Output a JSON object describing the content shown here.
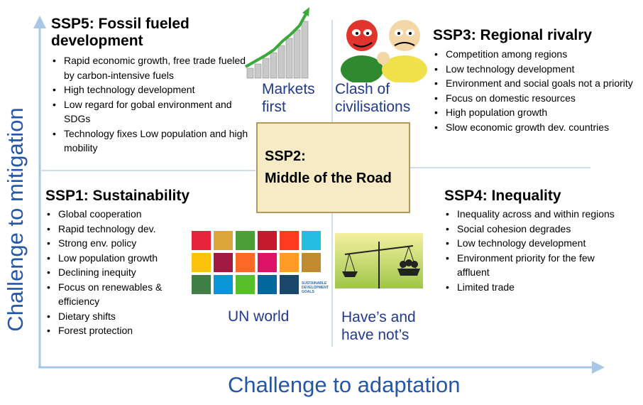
{
  "axes": {
    "x_label": "Challenge to adaptation",
    "y_label": "Challenge to mitigation",
    "axis_color": "#a9c8e8"
  },
  "ssp5": {
    "title_line1": "SSP5: Fossil fueled",
    "title_line2": "development",
    "items": [
      "Rapid economic growth, free trade fueled by carbon-intensive fuels",
      "High technology development",
      "Low regard for gobal environment and SDGs",
      "Technology fixes Low population and high mobility"
    ]
  },
  "ssp3": {
    "title": "SSP3: Regional rivalry",
    "items": [
      "Competition among regions",
      "Low technology development",
      "Environment and social goals not a priority",
      "Focus on domestic resources",
      "High population growth",
      "Slow economic growth dev. countries"
    ]
  },
  "ssp1": {
    "title": "SSP1: Sustainability",
    "items": [
      "Global cooperation",
      "Rapid technology dev.",
      "Strong env. policy",
      "Low population growth",
      "Declining inequity",
      "Focus on renewables & efficiency",
      "Dietary shifts",
      "Forest protection"
    ]
  },
  "ssp4": {
    "title": "SSP4: Inequality",
    "items": [
      "Inequality across and within regions",
      "Social cohesion degrades",
      "Low technology development",
      "Environment priority for the few affluent",
      "Limited trade"
    ]
  },
  "ssp2": {
    "line1": "SSP2:",
    "line2": "Middle of the Road"
  },
  "captions": {
    "markets_first": "Markets first",
    "clash": "Clash of civilisations",
    "un_world": "UN world",
    "haves": "Have’s and have not’s"
  },
  "sdg": {
    "footer_text": "SUSTAINABLE DEVELOPMENT GOALS",
    "colors": [
      "#e5243b",
      "#dda63a",
      "#4c9f38",
      "#c5192d",
      "#ff3a21",
      "#26bde2",
      "#fcc30b",
      "#a21942",
      "#fd6925",
      "#dd1367",
      "#fd9d24",
      "#bf8b2e",
      "#3f7e44",
      "#0a97d9",
      "#56c02b",
      "#00689d",
      "#19486a",
      "#ffffff"
    ]
  },
  "colors": {
    "caption_blue": "#1f3a8f",
    "ssp2_fill": "#f6ebc4",
    "ssp2_border": "#b49a5a"
  }
}
